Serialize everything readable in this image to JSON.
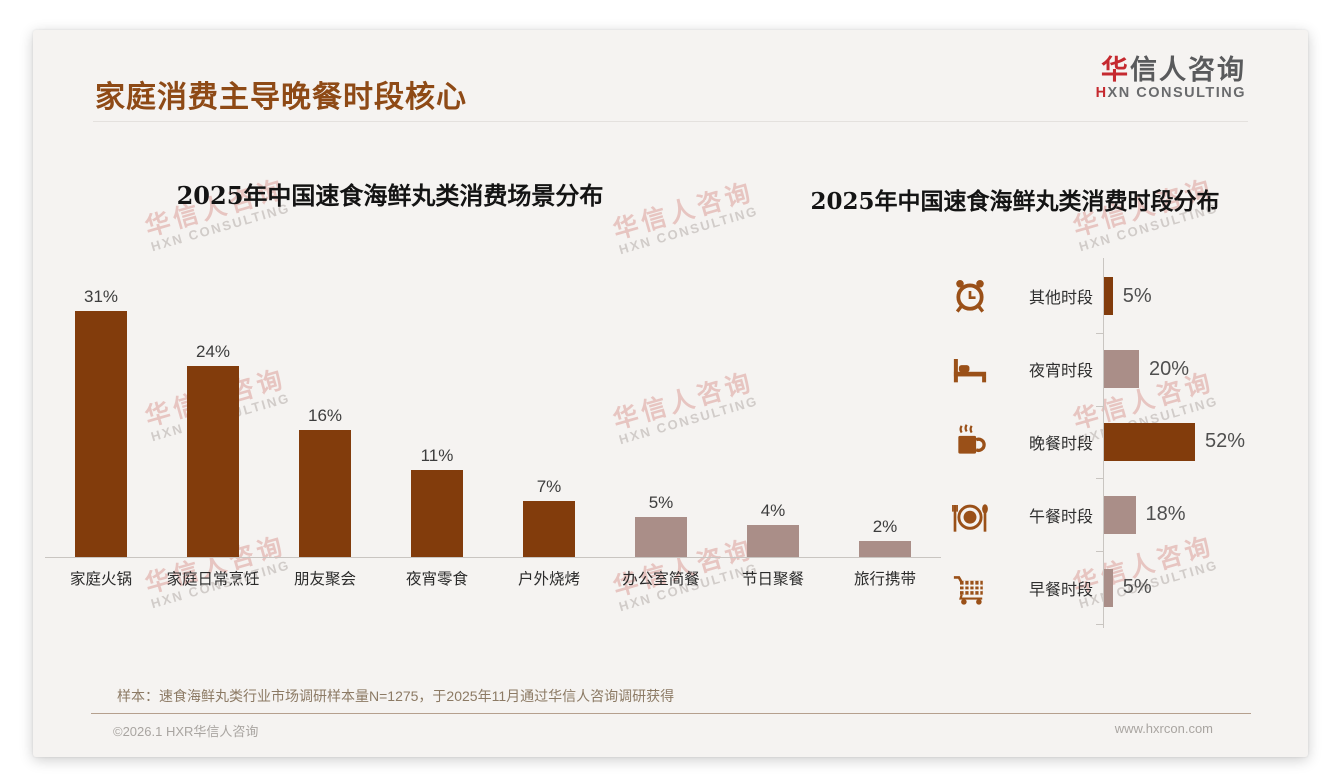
{
  "header": {
    "title": "家庭消费主导晚餐时段核心",
    "logo": {
      "cn_first": "华",
      "cn_rest": "信人咨询",
      "en_first": "H",
      "en_rest": "XN CONSULTING"
    }
  },
  "watermark": {
    "line1": "华信人咨询",
    "line2": "HXN CONSULTING"
  },
  "palette": {
    "dark": "#823c0c",
    "light": "#aa8e88",
    "icon": "#9a5018",
    "accent": "#8e4a16",
    "logo_red": "#c5292f"
  },
  "chart_data": [
    {
      "type": "bar",
      "orientation": "vertical",
      "title": "2025年中国速食海鲜丸类消费场景分布",
      "categories": [
        "家庭火锅",
        "家庭日常烹饪",
        "朋友聚会",
        "夜宵零食",
        "户外烧烤",
        "办公室简餐",
        "节日聚餐",
        "旅行携带"
      ],
      "values": [
        31,
        24,
        16,
        11,
        7,
        5,
        4,
        2
      ],
      "unit": "%",
      "bar_colors": [
        "dark",
        "dark",
        "dark",
        "dark",
        "dark",
        "light",
        "light",
        "light"
      ],
      "ylim": [
        0,
        35
      ],
      "grid": false,
      "value_labels": "above bars"
    },
    {
      "type": "bar",
      "orientation": "horizontal",
      "title": "2025年中国速食海鲜丸类消费时段分布",
      "categories": [
        "其他时段",
        "夜宵时段",
        "晚餐时段",
        "午餐时段",
        "早餐时段"
      ],
      "values": [
        5,
        20,
        52,
        18,
        5
      ],
      "unit": "%",
      "icons": [
        "alarm-clock",
        "bed",
        "coffee-cup",
        "plate-cutlery",
        "shopping-cart"
      ],
      "bar_colors": [
        "dark",
        "light",
        "dark",
        "light",
        "light"
      ],
      "xlim": [
        0,
        60
      ],
      "grid": false,
      "value_labels": "right of bars"
    }
  ],
  "footer": {
    "note": "样本：速食海鲜丸类行业市场调研样本量N=1275，于2025年11月通过华信人咨询调研获得",
    "copyright": "©2026.1 HXR华信人咨询",
    "website": "www.hxrcon.com"
  }
}
